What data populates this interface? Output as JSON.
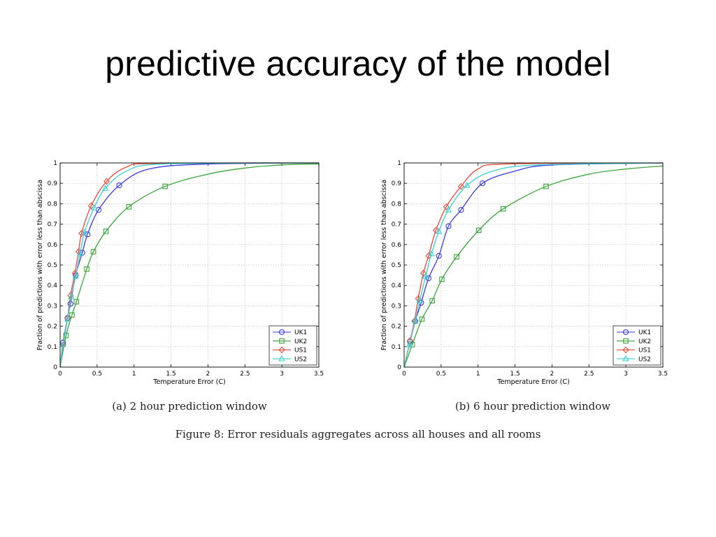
{
  "slide": {
    "title": "predictive accuracy of the model"
  },
  "figure": {
    "caption": "Figure 8: Error residuals aggregates across all houses and all rooms"
  },
  "colors": {
    "UK1": "#3a3ae0",
    "UK2": "#3aa53a",
    "US1": "#e84a3a",
    "US2": "#3ad0d0"
  },
  "chart_data": [
    {
      "type": "line",
      "caption": "(a) 2 hour prediction window",
      "xlabel": "Temperature Error (C)",
      "ylabel": "Fraction of predictions with error less than abscissa",
      "xlim": [
        0,
        3.5
      ],
      "ylim": [
        0,
        1
      ],
      "xticks": [
        "0",
        "0.5",
        "1",
        "1.5",
        "2",
        "2.5",
        "3",
        "3.5"
      ],
      "yticks": [
        "0",
        "0.1",
        "0.2",
        "0.3",
        "0.4",
        "0.5",
        "0.6",
        "0.7",
        "0.8",
        "0.9",
        "1"
      ],
      "grid": true,
      "legend_position": "bottom-right",
      "series": [
        {
          "name": "UK1",
          "marker": "circle",
          "x": [
            0,
            0.04,
            0.1,
            0.14,
            0.21,
            0.3,
            0.37,
            0.52,
            0.8,
            1.2,
            2,
            3.5
          ],
          "y": [
            0,
            0.12,
            0.24,
            0.31,
            0.45,
            0.56,
            0.65,
            0.77,
            0.89,
            0.97,
            0.995,
            1
          ],
          "markers_x": [
            0.04,
            0.1,
            0.14,
            0.21,
            0.3,
            0.37,
            0.52,
            0.8
          ]
        },
        {
          "name": "UK2",
          "marker": "square",
          "x": [
            0,
            0.08,
            0.16,
            0.22,
            0.36,
            0.45,
            0.62,
            0.93,
            1.42,
            2,
            2.5,
            3,
            3.5
          ],
          "y": [
            0,
            0.155,
            0.255,
            0.32,
            0.48,
            0.565,
            0.665,
            0.785,
            0.885,
            0.945,
            0.975,
            0.99,
            0.995
          ],
          "markers_x": [
            0.08,
            0.16,
            0.22,
            0.36,
            0.45,
            0.62,
            0.93,
            1.42
          ]
        },
        {
          "name": "US1",
          "marker": "diamond",
          "x": [
            0,
            0.04,
            0.1,
            0.14,
            0.2,
            0.25,
            0.29,
            0.42,
            0.63,
            0.9,
            1.3,
            3.5
          ],
          "y": [
            0,
            0.11,
            0.24,
            0.35,
            0.46,
            0.565,
            0.655,
            0.79,
            0.91,
            0.98,
            0.998,
            1
          ],
          "markers_x": [
            0.04,
            0.1,
            0.14,
            0.2,
            0.25,
            0.29,
            0.42,
            0.63
          ]
        },
        {
          "name": "US2",
          "marker": "triangle",
          "x": [
            0,
            0.04,
            0.1,
            0.15,
            0.21,
            0.27,
            0.33,
            0.46,
            0.61,
            0.9,
            1.4,
            3.5
          ],
          "y": [
            0,
            0.11,
            0.235,
            0.345,
            0.445,
            0.555,
            0.66,
            0.78,
            0.875,
            0.96,
            0.995,
            1
          ],
          "markers_x": [
            0.04,
            0.1,
            0.15,
            0.21,
            0.27,
            0.33,
            0.46,
            0.61
          ]
        }
      ]
    },
    {
      "type": "line",
      "caption": "(b) 6 hour prediction window",
      "xlabel": "Temperature Error (C)",
      "ylabel": "Fraction of predictions with error less than abscissa",
      "xlim": [
        0,
        3.5
      ],
      "ylim": [
        0,
        1
      ],
      "xticks": [
        "0",
        "0.5",
        "1",
        "1.5",
        "2",
        "2.5",
        "3",
        "3.5"
      ],
      "yticks": [
        "0",
        "0.1",
        "0.2",
        "0.3",
        "0.4",
        "0.5",
        "0.6",
        "0.7",
        "0.8",
        "0.9",
        "1"
      ],
      "grid": true,
      "legend_position": "bottom-right",
      "series": [
        {
          "name": "UK1",
          "marker": "circle",
          "x": [
            0,
            0.08,
            0.15,
            0.23,
            0.33,
            0.47,
            0.6,
            0.77,
            1.06,
            1.5,
            2,
            3.5
          ],
          "y": [
            0,
            0.125,
            0.225,
            0.315,
            0.435,
            0.545,
            0.69,
            0.77,
            0.9,
            0.96,
            0.99,
            1
          ],
          "markers_x": [
            0.08,
            0.15,
            0.23,
            0.33,
            0.47,
            0.6,
            0.77,
            1.06
          ]
        },
        {
          "name": "UK2",
          "marker": "square",
          "x": [
            0,
            0.11,
            0.24,
            0.38,
            0.51,
            0.71,
            1.01,
            1.34,
            1.92,
            2.5,
            3,
            3.5
          ],
          "y": [
            0,
            0.11,
            0.235,
            0.325,
            0.43,
            0.54,
            0.67,
            0.775,
            0.885,
            0.945,
            0.97,
            0.985
          ],
          "markers_x": [
            0.11,
            0.24,
            0.38,
            0.51,
            0.71,
            1.01,
            1.34,
            1.92
          ]
        },
        {
          "name": "US1",
          "marker": "diamond",
          "x": [
            0,
            0.08,
            0.14,
            0.19,
            0.26,
            0.33,
            0.43,
            0.57,
            0.77,
            1.0,
            1.4,
            3.5
          ],
          "y": [
            0,
            0.13,
            0.225,
            0.335,
            0.46,
            0.545,
            0.67,
            0.785,
            0.885,
            0.97,
            0.995,
            1
          ],
          "markers_x": [
            0.08,
            0.14,
            0.19,
            0.26,
            0.33,
            0.43,
            0.57,
            0.77
          ]
        },
        {
          "name": "US2",
          "marker": "triangle",
          "x": [
            0,
            0.07,
            0.15,
            0.21,
            0.29,
            0.37,
            0.47,
            0.6,
            0.85,
            1.2,
            1.8,
            3.5
          ],
          "y": [
            0,
            0.11,
            0.225,
            0.325,
            0.445,
            0.555,
            0.665,
            0.77,
            0.89,
            0.96,
            0.99,
            1
          ],
          "markers_x": [
            0.07,
            0.15,
            0.21,
            0.29,
            0.37,
            0.47,
            0.6,
            0.85
          ]
        }
      ]
    }
  ]
}
